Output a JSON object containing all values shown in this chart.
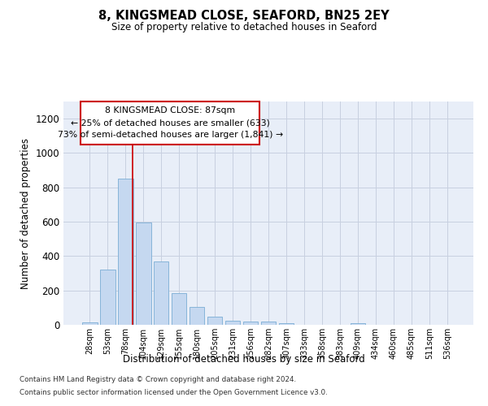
{
  "title": "8, KINGSMEAD CLOSE, SEAFORD, BN25 2EY",
  "subtitle": "Size of property relative to detached houses in Seaford",
  "xlabel": "Distribution of detached houses by size in Seaford",
  "ylabel": "Number of detached properties",
  "bar_color": "#c5d8f0",
  "bar_edge_color": "#7aadd4",
  "grid_color": "#c8d0e0",
  "background_color": "#e8eef8",
  "annotation_box_color": "#cc0000",
  "annotation_line_color": "#cc0000",
  "categories": [
    "28sqm",
    "53sqm",
    "78sqm",
    "104sqm",
    "129sqm",
    "155sqm",
    "180sqm",
    "205sqm",
    "231sqm",
    "256sqm",
    "282sqm",
    "307sqm",
    "333sqm",
    "358sqm",
    "383sqm",
    "409sqm",
    "434sqm",
    "460sqm",
    "485sqm",
    "511sqm",
    "536sqm"
  ],
  "values": [
    15,
    320,
    850,
    595,
    370,
    185,
    105,
    47,
    22,
    18,
    20,
    10,
    0,
    0,
    0,
    10,
    0,
    0,
    0,
    0,
    0
  ],
  "ylim": [
    0,
    1300
  ],
  "yticks": [
    0,
    200,
    400,
    600,
    800,
    1000,
    1200
  ],
  "annotation_line1": "8 KINGSMEAD CLOSE: 87sqm",
  "annotation_line2": "← 25% of detached houses are smaller (633)",
  "annotation_line3": "73% of semi-detached houses are larger (1,841) →",
  "footnote1": "Contains HM Land Registry data © Crown copyright and database right 2024.",
  "footnote2": "Contains public sector information licensed under the Open Government Licence v3.0."
}
